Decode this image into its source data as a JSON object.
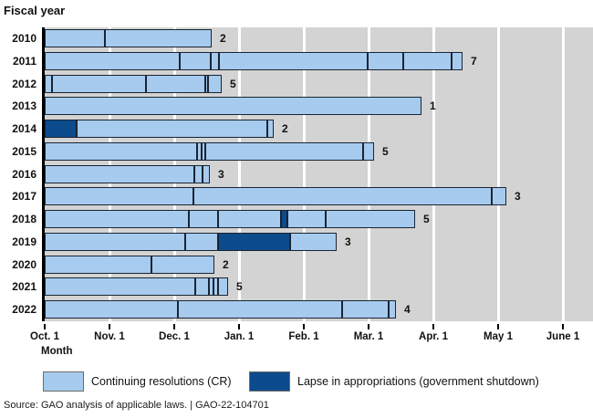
{
  "title": "Fiscal year",
  "x_axis": {
    "label": "Month",
    "ticks": [
      "Oct. 1",
      "Nov. 1",
      "Dec. 1",
      "Jan. 1",
      "Feb. 1",
      "Mar. 1",
      "Apr. 1",
      "May 1",
      "June 1"
    ]
  },
  "legend": {
    "cr_label": "Continuing resolutions (CR)",
    "lapse_label": "Lapse in appropriations (government shutdown)"
  },
  "source": "Source: GAO analysis of applicable laws.  |  GAO-22-104701",
  "colors": {
    "cr": "#A6CBEE",
    "lapse": "#0C4C8C",
    "segment_border": "#1A2433",
    "plot_bg": "#D3D3D3",
    "gridline": "#FFFFFF"
  },
  "chart_data": {
    "type": "bar",
    "orientation": "horizontal-timeline",
    "title": "Fiscal year",
    "xlabel": "Month",
    "x_unit": "months since Oct. 1",
    "xlim": [
      0,
      8.45
    ],
    "grid": "vertical white lines at each month",
    "legend_position": "bottom",
    "rows": [
      {
        "year": "2010",
        "count": 2,
        "segments": [
          {
            "s": 0,
            "e": 0.93,
            "t": "cr"
          },
          {
            "s": 0.93,
            "e": 2.58,
            "t": "cr"
          }
        ]
      },
      {
        "year": "2011",
        "count": 7,
        "segments": [
          {
            "s": 0,
            "e": 2.08,
            "t": "cr"
          },
          {
            "s": 2.08,
            "e": 2.56,
            "t": "cr"
          },
          {
            "s": 2.56,
            "e": 2.69,
            "t": "cr"
          },
          {
            "s": 2.69,
            "e": 4.99,
            "t": "cr"
          },
          {
            "s": 4.99,
            "e": 5.54,
            "t": "cr"
          },
          {
            "s": 5.54,
            "e": 6.28,
            "t": "cr"
          },
          {
            "s": 6.28,
            "e": 6.45,
            "t": "cr"
          }
        ]
      },
      {
        "year": "2012",
        "count": 5,
        "segments": [
          {
            "s": 0,
            "e": 0.11,
            "t": "cr"
          },
          {
            "s": 0.11,
            "e": 1.56,
            "t": "cr"
          },
          {
            "s": 1.56,
            "e": 2.48,
            "t": "cr"
          },
          {
            "s": 2.48,
            "e": 2.52,
            "t": "cr"
          },
          {
            "s": 2.52,
            "e": 2.73,
            "t": "cr"
          }
        ]
      },
      {
        "year": "2013",
        "count": 1,
        "segments": [
          {
            "s": 0,
            "e": 5.82,
            "t": "cr"
          }
        ]
      },
      {
        "year": "2014",
        "count": 2,
        "segments": [
          {
            "s": 0,
            "e": 0.49,
            "t": "lapse"
          },
          {
            "s": 0.49,
            "e": 3.44,
            "t": "cr"
          },
          {
            "s": 3.44,
            "e": 3.54,
            "t": "cr"
          }
        ]
      },
      {
        "year": "2015",
        "count": 5,
        "segments": [
          {
            "s": 0,
            "e": 2.35,
            "t": "cr"
          },
          {
            "s": 2.35,
            "e": 2.42,
            "t": "cr"
          },
          {
            "s": 2.42,
            "e": 2.48,
            "t": "cr"
          },
          {
            "s": 2.48,
            "e": 4.92,
            "t": "cr"
          },
          {
            "s": 4.92,
            "e": 5.08,
            "t": "cr"
          }
        ]
      },
      {
        "year": "2016",
        "count": 3,
        "segments": [
          {
            "s": 0,
            "e": 2.31,
            "t": "cr"
          },
          {
            "s": 2.31,
            "e": 2.44,
            "t": "cr"
          },
          {
            "s": 2.44,
            "e": 2.55,
            "t": "cr"
          }
        ]
      },
      {
        "year": "2017",
        "count": 3,
        "segments": [
          {
            "s": 0,
            "e": 2.3,
            "t": "cr"
          },
          {
            "s": 2.3,
            "e": 6.9,
            "t": "cr"
          },
          {
            "s": 6.9,
            "e": 7.13,
            "t": "cr"
          }
        ]
      },
      {
        "year": "2018",
        "count": 5,
        "segments": [
          {
            "s": 0,
            "e": 2.23,
            "t": "cr"
          },
          {
            "s": 2.23,
            "e": 2.68,
            "t": "cr"
          },
          {
            "s": 2.68,
            "e": 3.65,
            "t": "cr"
          },
          {
            "s": 3.65,
            "e": 3.75,
            "t": "lapse"
          },
          {
            "s": 3.75,
            "e": 4.34,
            "t": "cr"
          },
          {
            "s": 4.34,
            "e": 5.72,
            "t": "cr"
          }
        ]
      },
      {
        "year": "2019",
        "count": 3,
        "segments": [
          {
            "s": 0,
            "e": 2.17,
            "t": "cr"
          },
          {
            "s": 2.17,
            "e": 2.68,
            "t": "cr"
          },
          {
            "s": 2.68,
            "e": 3.79,
            "t": "lapse"
          },
          {
            "s": 3.79,
            "e": 4.51,
            "t": "cr"
          }
        ]
      },
      {
        "year": "2020",
        "count": 2,
        "segments": [
          {
            "s": 0,
            "e": 1.65,
            "t": "cr"
          },
          {
            "s": 1.65,
            "e": 2.62,
            "t": "cr"
          }
        ]
      },
      {
        "year": "2021",
        "count": 5,
        "segments": [
          {
            "s": 0,
            "e": 2.32,
            "t": "cr"
          },
          {
            "s": 2.32,
            "e": 2.54,
            "t": "cr"
          },
          {
            "s": 2.54,
            "e": 2.61,
            "t": "cr"
          },
          {
            "s": 2.61,
            "e": 2.68,
            "t": "cr"
          },
          {
            "s": 2.68,
            "e": 2.83,
            "t": "cr"
          }
        ]
      },
      {
        "year": "2022",
        "count": 4,
        "segments": [
          {
            "s": 0,
            "e": 2.06,
            "t": "cr"
          },
          {
            "s": 2.06,
            "e": 4.59,
            "t": "cr"
          },
          {
            "s": 4.59,
            "e": 5.31,
            "t": "cr"
          },
          {
            "s": 5.31,
            "e": 5.42,
            "t": "cr"
          }
        ]
      }
    ]
  }
}
